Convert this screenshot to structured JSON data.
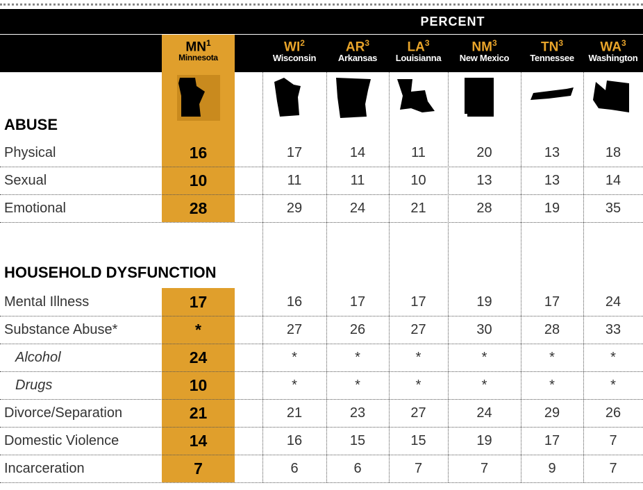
{
  "header": "PERCENT",
  "columns": [
    {
      "code": "MN",
      "note": "1",
      "name": "Minnesota"
    },
    {
      "code": "WI",
      "note": "2",
      "name": "Wisconsin"
    },
    {
      "code": "AR",
      "note": "3",
      "name": "Arkansas"
    },
    {
      "code": "LA",
      "note": "3",
      "name": "Louisianna"
    },
    {
      "code": "NM",
      "note": "3",
      "name": "New Mexico"
    },
    {
      "code": "TN",
      "note": "3",
      "name": "Tennessee"
    },
    {
      "code": "WA",
      "note": "3",
      "name": "Washington"
    }
  ],
  "sections": [
    {
      "title": "ABUSE",
      "rows": [
        {
          "label": "Physical",
          "values": [
            16,
            17,
            14,
            11,
            20,
            13,
            18
          ]
        },
        {
          "label": "Sexual",
          "values": [
            10,
            11,
            11,
            10,
            13,
            13,
            14
          ]
        },
        {
          "label": "Emotional",
          "values": [
            28,
            29,
            24,
            21,
            28,
            19,
            35
          ]
        }
      ]
    },
    {
      "title": "HOUSEHOLD DYSFUNCTION",
      "rows": [
        {
          "label": "Mental Illness",
          "values": [
            17,
            16,
            17,
            17,
            19,
            17,
            24
          ]
        },
        {
          "label": "Substance Abuse*",
          "values": [
            "*",
            27,
            26,
            27,
            30,
            28,
            33
          ]
        },
        {
          "label": "Alcohol",
          "sub": true,
          "values": [
            24,
            "*",
            "*",
            "*",
            "*",
            "*",
            "*"
          ]
        },
        {
          "label": "Drugs",
          "sub": true,
          "values": [
            10,
            "*",
            "*",
            "*",
            "*",
            "*",
            "*"
          ]
        },
        {
          "label": "Divorce/Separation",
          "values": [
            21,
            21,
            23,
            27,
            24,
            29,
            26
          ]
        },
        {
          "label": "Domestic Violence",
          "values": [
            14,
            16,
            15,
            15,
            19,
            17,
            7
          ]
        },
        {
          "label": "Incarceration",
          "values": [
            7,
            6,
            6,
            7,
            7,
            9,
            7
          ]
        }
      ]
    }
  ]
}
